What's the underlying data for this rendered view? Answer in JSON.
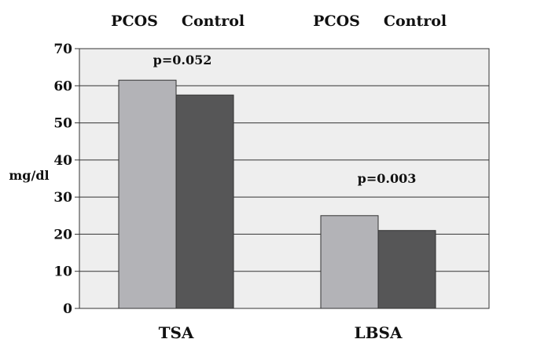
{
  "chart_data": {
    "type": "bar",
    "categories": [
      "TSA",
      "LBSA"
    ],
    "series": [
      {
        "name": "PCOS",
        "values": [
          61.5,
          25
        ],
        "color": "#b3b3b7"
      },
      {
        "name": "Control",
        "values": [
          57.5,
          21
        ],
        "color": "#565657"
      }
    ],
    "group_headers": [
      [
        "PCOS",
        "Control"
      ],
      [
        "PCOS",
        "Control"
      ]
    ],
    "ylabel": "mg/dl",
    "ylim": [
      0,
      70
    ],
    "yticks": [
      0,
      10,
      20,
      30,
      40,
      50,
      60,
      70
    ],
    "annotations": [
      "p=0.052",
      "p=0.003"
    ],
    "grid": true,
    "plot_background": "#eeeeee"
  }
}
